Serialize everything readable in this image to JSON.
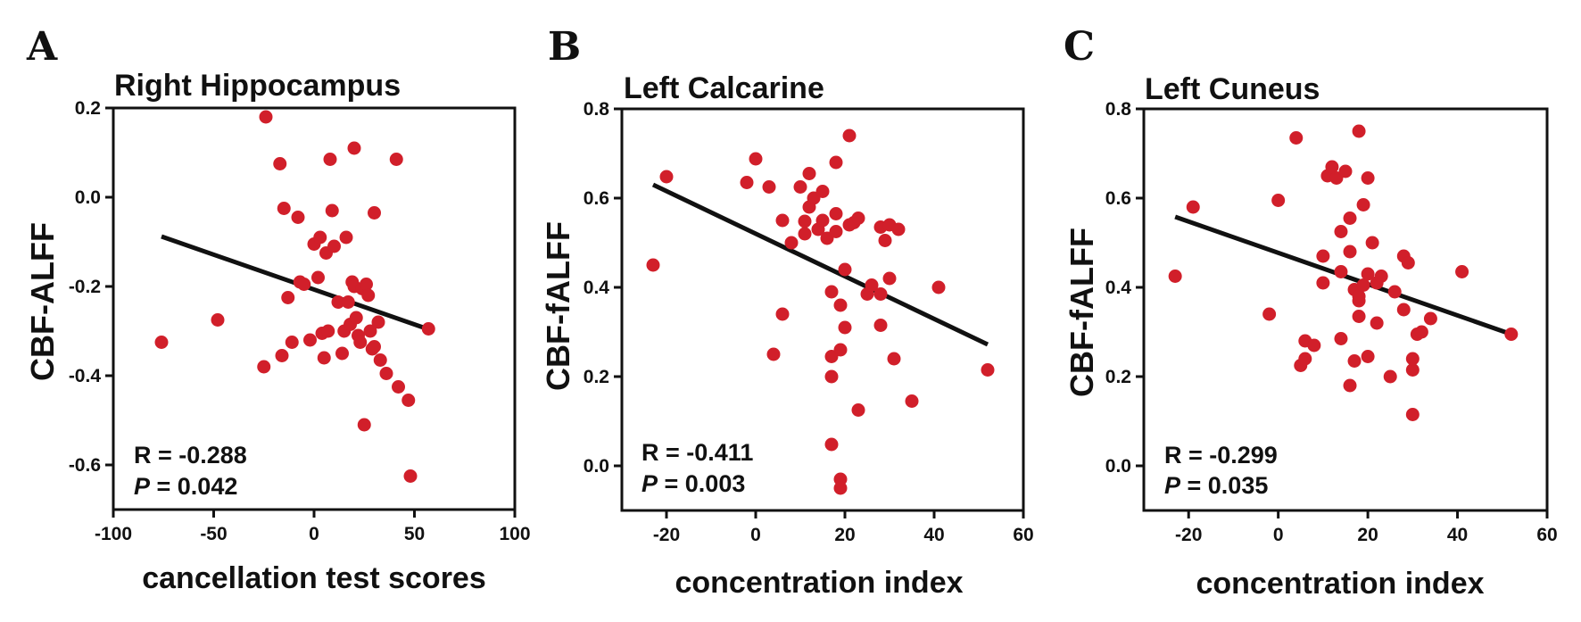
{
  "chart_data": [
    {
      "panel": "A",
      "type": "scatter",
      "title": "Right Hippocampus",
      "xlabel": "cancellation test scores",
      "ylabel": "CBF-ALFF",
      "xlim": [
        -100,
        100
      ],
      "ylim": [
        -0.7,
        0.2
      ],
      "xticks": [
        -100,
        -50,
        0,
        50,
        100
      ],
      "yticks": [
        -0.6,
        -0.4,
        -0.2,
        0.0,
        0.2
      ],
      "xtick_labels": [
        "-100",
        "-50",
        "0",
        "50",
        "100"
      ],
      "ytick_labels": [
        "-0.6",
        "-0.4",
        "-0.2",
        "0.0",
        "0.2"
      ],
      "r_text": "R = -0.288",
      "p_letter": "P",
      "p_value": " = 0.042",
      "fit_line": {
        "x": [
          -76,
          57
        ],
        "y": [
          -0.088,
          -0.296
        ]
      },
      "points": [
        [
          -76,
          -0.325
        ],
        [
          -48,
          -0.275
        ],
        [
          -25,
          -0.38
        ],
        [
          -24,
          0.18
        ],
        [
          -17,
          0.075
        ],
        [
          -16,
          -0.355
        ],
        [
          -15,
          -0.025
        ],
        [
          -13,
          -0.225
        ],
        [
          -11,
          -0.325
        ],
        [
          -8,
          -0.045
        ],
        [
          -7,
          -0.19
        ],
        [
          -5,
          -0.195
        ],
        [
          -2,
          -0.32
        ],
        [
          0,
          -0.105
        ],
        [
          2,
          -0.18
        ],
        [
          3,
          -0.09
        ],
        [
          4,
          -0.305
        ],
        [
          5,
          -0.36
        ],
        [
          6,
          -0.125
        ],
        [
          7,
          -0.3
        ],
        [
          8,
          0.085
        ],
        [
          9,
          -0.03
        ],
        [
          10,
          -0.11
        ],
        [
          12,
          -0.235
        ],
        [
          14,
          -0.35
        ],
        [
          15,
          -0.3
        ],
        [
          16,
          -0.09
        ],
        [
          17,
          -0.235
        ],
        [
          18,
          -0.285
        ],
        [
          19,
          -0.19
        ],
        [
          20,
          -0.2
        ],
        [
          20,
          0.11
        ],
        [
          21,
          -0.27
        ],
        [
          22,
          -0.31
        ],
        [
          23,
          -0.325
        ],
        [
          24,
          -0.205
        ],
        [
          25,
          -0.51
        ],
        [
          26,
          -0.195
        ],
        [
          27,
          -0.22
        ],
        [
          28,
          -0.3
        ],
        [
          29,
          -0.34
        ],
        [
          30,
          -0.335
        ],
        [
          30,
          -0.035
        ],
        [
          32,
          -0.28
        ],
        [
          33,
          -0.365
        ],
        [
          36,
          -0.395
        ],
        [
          41,
          0.085
        ],
        [
          42,
          -0.425
        ],
        [
          47,
          -0.455
        ],
        [
          48,
          -0.625
        ],
        [
          57,
          -0.295
        ]
      ]
    },
    {
      "panel": "B",
      "type": "scatter",
      "title": "Left Calcarine",
      "xlabel": "concentration index",
      "ylabel": "CBF-fALFF",
      "xlim": [
        -30,
        60
      ],
      "ylim": [
        -0.1,
        0.8
      ],
      "xticks": [
        -20,
        0,
        20,
        40,
        60
      ],
      "yticks": [
        0.0,
        0.2,
        0.4,
        0.6,
        0.8
      ],
      "xtick_labels": [
        "-20",
        "0",
        "20",
        "40",
        "60"
      ],
      "ytick_labels": [
        "0.0",
        "0.2",
        "0.4",
        "0.6",
        "0.8"
      ],
      "r_text": "R = -0.411",
      "p_letter": "P",
      "p_value": " = 0.003",
      "fit_line": {
        "x": [
          -23,
          52
        ],
        "y": [
          0.63,
          0.272
        ]
      },
      "points": [
        [
          -23,
          0.45
        ],
        [
          -20,
          0.648
        ],
        [
          -2,
          0.635
        ],
        [
          0,
          0.688
        ],
        [
          3,
          0.625
        ],
        [
          4,
          0.25
        ],
        [
          6,
          0.55
        ],
        [
          6,
          0.34
        ],
        [
          8,
          0.5
        ],
        [
          10,
          0.625
        ],
        [
          11,
          0.548
        ],
        [
          11,
          0.52
        ],
        [
          12,
          0.58
        ],
        [
          12,
          0.655
        ],
        [
          13,
          0.6
        ],
        [
          14,
          0.53
        ],
        [
          15,
          0.615
        ],
        [
          15,
          0.55
        ],
        [
          16,
          0.51
        ],
        [
          17,
          0.2
        ],
        [
          17,
          0.048
        ],
        [
          17,
          0.39
        ],
        [
          17,
          0.245
        ],
        [
          18,
          0.565
        ],
        [
          18,
          0.68
        ],
        [
          18,
          0.525
        ],
        [
          19,
          -0.03
        ],
        [
          19,
          -0.05
        ],
        [
          19,
          0.36
        ],
        [
          19,
          0.26
        ],
        [
          20,
          0.44
        ],
        [
          20,
          0.31
        ],
        [
          21,
          0.54
        ],
        [
          21,
          0.74
        ],
        [
          22,
          0.545
        ],
        [
          23,
          0.125
        ],
        [
          23,
          0.555
        ],
        [
          25,
          0.385
        ],
        [
          26,
          0.405
        ],
        [
          28,
          0.385
        ],
        [
          28,
          0.535
        ],
        [
          28,
          0.315
        ],
        [
          29,
          0.505
        ],
        [
          30,
          0.42
        ],
        [
          30,
          0.54
        ],
        [
          31,
          0.24
        ],
        [
          32,
          0.53
        ],
        [
          35,
          0.145
        ],
        [
          41,
          0.4
        ],
        [
          52,
          0.215
        ]
      ]
    },
    {
      "panel": "C",
      "type": "scatter",
      "title": "Left Cuneus",
      "xlabel": "concentration index",
      "ylabel": "CBF-fALFF",
      "xlim": [
        -30,
        60
      ],
      "ylim": [
        -0.1,
        0.8
      ],
      "xticks": [
        -20,
        0,
        20,
        40,
        60
      ],
      "yticks": [
        0.0,
        0.2,
        0.4,
        0.6,
        0.8
      ],
      "xtick_labels": [
        "-20",
        "0",
        "20",
        "40",
        "60"
      ],
      "ytick_labels": [
        "0.0",
        "0.2",
        "0.4",
        "0.6",
        "0.8"
      ],
      "r_text": "R = -0.299",
      "p_letter": "P",
      "p_value": " = 0.035",
      "fit_line": {
        "x": [
          -23,
          52
        ],
        "y": [
          0.558,
          0.295
        ]
      },
      "points": [
        [
          -23,
          0.425
        ],
        [
          -19,
          0.58
        ],
        [
          -2,
          0.34
        ],
        [
          0,
          0.595
        ],
        [
          4,
          0.735
        ],
        [
          5,
          0.225
        ],
        [
          6,
          0.24
        ],
        [
          6,
          0.28
        ],
        [
          8,
          0.27
        ],
        [
          10,
          0.41
        ],
        [
          10,
          0.47
        ],
        [
          11,
          0.65
        ],
        [
          12,
          0.67
        ],
        [
          13,
          0.645
        ],
        [
          14,
          0.285
        ],
        [
          14,
          0.435
        ],
        [
          14,
          0.525
        ],
        [
          15,
          0.66
        ],
        [
          16,
          0.18
        ],
        [
          16,
          0.555
        ],
        [
          16,
          0.48
        ],
        [
          17,
          0.235
        ],
        [
          17,
          0.395
        ],
        [
          18,
          0.37
        ],
        [
          18,
          0.75
        ],
        [
          18,
          0.38
        ],
        [
          18,
          0.335
        ],
        [
          19,
          0.585
        ],
        [
          19,
          0.405
        ],
        [
          20,
          0.245
        ],
        [
          20,
          0.43
        ],
        [
          20,
          0.645
        ],
        [
          21,
          0.5
        ],
        [
          22,
          0.41
        ],
        [
          22,
          0.32
        ],
        [
          23,
          0.425
        ],
        [
          25,
          0.2
        ],
        [
          26,
          0.39
        ],
        [
          28,
          0.35
        ],
        [
          28,
          0.47
        ],
        [
          29,
          0.455
        ],
        [
          30,
          0.215
        ],
        [
          30,
          0.24
        ],
        [
          30,
          0.115
        ],
        [
          31,
          0.295
        ],
        [
          32,
          0.3
        ],
        [
          34,
          0.33
        ],
        [
          41,
          0.435
        ],
        [
          52,
          0.295
        ]
      ]
    }
  ]
}
